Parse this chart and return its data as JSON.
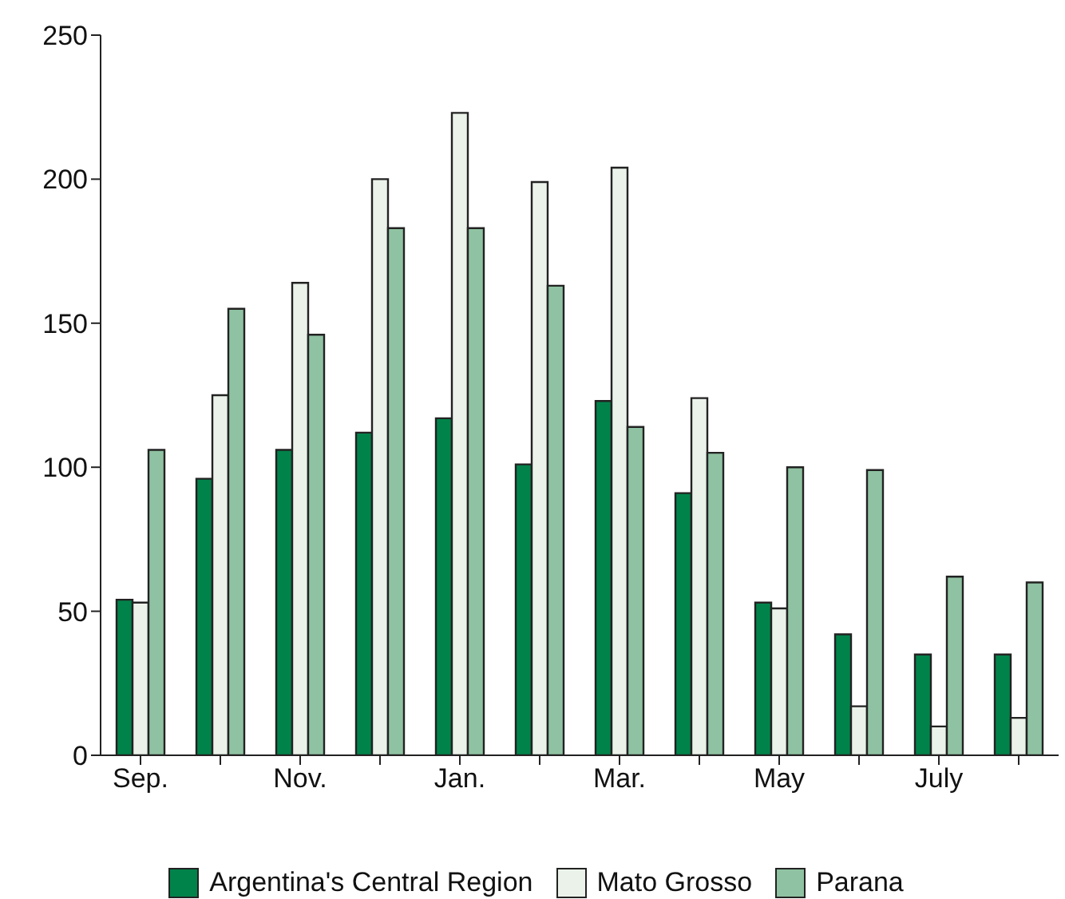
{
  "chart_data": {
    "type": "bar",
    "categories": [
      "Sep.",
      null,
      "Nov.",
      null,
      "Jan.",
      null,
      "Mar.",
      null,
      "May",
      null,
      "July",
      null
    ],
    "series": [
      {
        "name": "Argentina's Central Region",
        "color": "#00834a",
        "values": [
          54,
          96,
          106,
          112,
          117,
          101,
          123,
          91,
          53,
          42,
          35,
          35
        ]
      },
      {
        "name": "Mato Grosso",
        "color": "#eaf2ea",
        "values": [
          53,
          125,
          164,
          200,
          223,
          199,
          204,
          124,
          51,
          17,
          10,
          13
        ]
      },
      {
        "name": "Parana",
        "color": "#8fc2a2",
        "values": [
          106,
          155,
          146,
          183,
          183,
          163,
          114,
          105,
          100,
          99,
          62,
          60
        ]
      }
    ],
    "ylim": [
      0,
      250
    ],
    "yticks": [
      0,
      50,
      100,
      150,
      200,
      250
    ],
    "grid": false,
    "legend": "bottom"
  }
}
